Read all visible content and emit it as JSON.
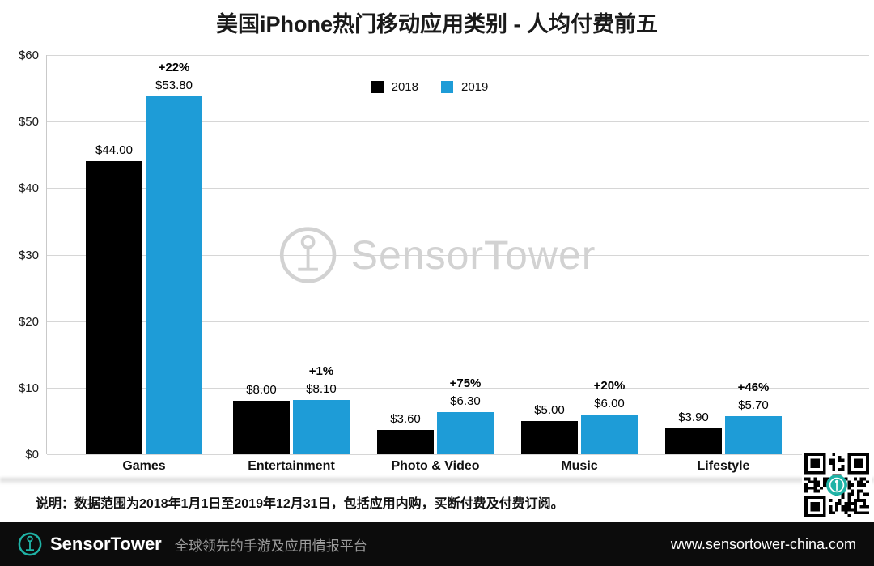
{
  "title": "美国iPhone热门移动应用类别 - 人均付费前五",
  "watermark": {
    "text": "SensorTower"
  },
  "note": "说明：数据范围为2018年1月1日至2019年12月31日，包括应用内购，买断付费及付费订阅。",
  "footer": {
    "brand": "SensorTower",
    "tagline": "全球领先的手游及应用情报平台",
    "url": "www.sensortower-china.com"
  },
  "colors": {
    "series_2018": "#000000",
    "series_2019": "#1e9cd7",
    "footer_bg": "#0c0c0c",
    "logo_teal": "#1fb3a6",
    "watermark_gray": "#d2d2d2"
  },
  "chart_data": {
    "type": "bar",
    "title": "美国iPhone热门移动应用类别 - 人均付费前五",
    "categories": [
      "Games",
      "Entertainment",
      "Photo & Video",
      "Music",
      "Lifestyle"
    ],
    "series": [
      {
        "name": "2018",
        "color": "#000000",
        "values": [
          44.0,
          8.0,
          3.6,
          5.0,
          3.9
        ]
      },
      {
        "name": "2019",
        "color": "#1e9cd7",
        "values": [
          53.8,
          8.1,
          6.3,
          6.0,
          5.7
        ]
      }
    ],
    "value_labels": [
      [
        "$44.00",
        "$8.00",
        "$3.60",
        "$5.00",
        "$3.90"
      ],
      [
        "$53.80",
        "$8.10",
        "$6.30",
        "$6.00",
        "$5.70"
      ]
    ],
    "pct_labels": [
      "+22%",
      "+1%",
      "+75%",
      "+20%",
      "+46%"
    ],
    "ylabel": "",
    "xlabel": "",
    "ylim": [
      0,
      60
    ],
    "ytick_step": 10,
    "ytick_labels": [
      "$0",
      "$10",
      "$20",
      "$30",
      "$40",
      "$50",
      "$60"
    ],
    "grid": true,
    "legend_position": "top-center"
  }
}
